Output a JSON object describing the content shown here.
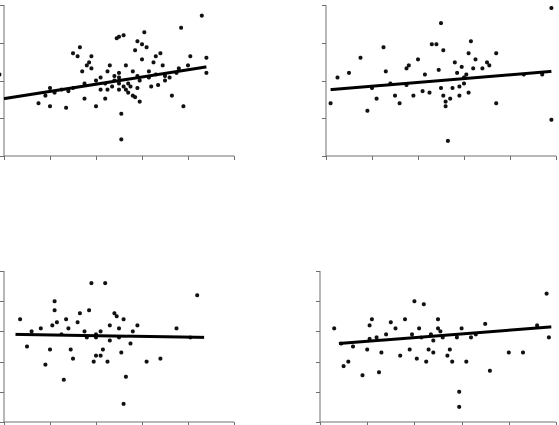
{
  "chart_data": [
    {
      "type": "scatter",
      "xlim": [
        0,
        100
      ],
      "ylim": [
        0,
        100
      ],
      "y_ticks": [
        0,
        25,
        50,
        75,
        100
      ],
      "x_ticks": [
        0,
        20,
        40,
        60,
        80,
        100
      ],
      "trend": [
        [
          0,
          38
        ],
        [
          88,
          59
        ]
      ],
      "points": [
        [
          -2,
          54
        ],
        [
          15,
          35
        ],
        [
          18,
          40
        ],
        [
          20,
          33
        ],
        [
          20,
          45
        ],
        [
          22,
          42
        ],
        [
          25,
          44
        ],
        [
          27,
          32
        ],
        [
          28,
          43
        ],
        [
          30,
          68
        ],
        [
          30,
          45
        ],
        [
          32,
          66
        ],
        [
          33,
          72
        ],
        [
          34,
          56
        ],
        [
          35,
          48
        ],
        [
          35,
          38
        ],
        [
          36,
          60
        ],
        [
          37,
          62
        ],
        [
          38,
          58
        ],
        [
          38,
          66
        ],
        [
          40,
          50
        ],
        [
          40,
          33
        ],
        [
          42,
          52
        ],
        [
          42,
          44
        ],
        [
          44,
          38
        ],
        [
          44,
          48
        ],
        [
          45,
          44
        ],
        [
          45,
          56
        ],
        [
          46,
          60
        ],
        [
          47,
          46
        ],
        [
          48,
          50
        ],
        [
          48,
          53
        ],
        [
          49,
          78
        ],
        [
          50,
          55
        ],
        [
          50,
          79
        ],
        [
          50,
          44
        ],
        [
          50,
          52
        ],
        [
          50,
          48
        ],
        [
          51,
          11
        ],
        [
          51,
          28
        ],
        [
          52,
          80
        ],
        [
          52,
          46
        ],
        [
          53,
          60
        ],
        [
          53,
          44
        ],
        [
          54,
          42
        ],
        [
          54,
          48
        ],
        [
          55,
          46
        ],
        [
          56,
          56
        ],
        [
          56,
          40
        ],
        [
          57,
          39
        ],
        [
          57,
          70
        ],
        [
          58,
          76
        ],
        [
          58,
          45
        ],
        [
          58,
          53
        ],
        [
          59,
          36
        ],
        [
          59,
          50
        ],
        [
          60,
          64
        ],
        [
          60,
          74
        ],
        [
          61,
          82
        ],
        [
          62,
          72
        ],
        [
          63,
          56
        ],
        [
          63,
          52
        ],
        [
          64,
          46
        ],
        [
          65,
          62
        ],
        [
          66,
          66
        ],
        [
          66,
          54
        ],
        [
          67,
          47
        ],
        [
          68,
          68
        ],
        [
          69,
          60
        ],
        [
          70,
          50
        ],
        [
          70,
          53
        ],
        [
          72,
          52
        ],
        [
          73,
          40
        ],
        [
          75,
          55
        ],
        [
          76,
          58
        ],
        [
          77,
          85
        ],
        [
          78,
          33
        ],
        [
          80,
          60
        ],
        [
          81,
          66
        ],
        [
          86,
          93
        ],
        [
          88,
          55
        ],
        [
          88,
          65
        ]
      ]
    },
    {
      "type": "scatter",
      "xlim": [
        0,
        100
      ],
      "ylim": [
        0,
        100
      ],
      "y_ticks": [
        0,
        25,
        50,
        75,
        100
      ],
      "x_ticks": [
        0,
        20,
        40,
        60,
        80,
        100
      ],
      "trend": [
        [
          2,
          44
        ],
        [
          98,
          56
        ]
      ],
      "points": [
        [
          2,
          35
        ],
        [
          5,
          52
        ],
        [
          10,
          55
        ],
        [
          15,
          65
        ],
        [
          18,
          30
        ],
        [
          20,
          45
        ],
        [
          22,
          38
        ],
        [
          25,
          72
        ],
        [
          26,
          56
        ],
        [
          28,
          48
        ],
        [
          30,
          40
        ],
        [
          32,
          35
        ],
        [
          35,
          47
        ],
        [
          35,
          58
        ],
        [
          36,
          60
        ],
        [
          38,
          40
        ],
        [
          40,
          64
        ],
        [
          42,
          43
        ],
        [
          43,
          54
        ],
        [
          45,
          42
        ],
        [
          46,
          74
        ],
        [
          48,
          74
        ],
        [
          49,
          57
        ],
        [
          50,
          88
        ],
        [
          50,
          45
        ],
        [
          51,
          70
        ],
        [
          51,
          40
        ],
        [
          52,
          36
        ],
        [
          52,
          33
        ],
        [
          53,
          10
        ],
        [
          54,
          38
        ],
        [
          55,
          45
        ],
        [
          56,
          62
        ],
        [
          57,
          55
        ],
        [
          58,
          46
        ],
        [
          58,
          40
        ],
        [
          59,
          59
        ],
        [
          60,
          48
        ],
        [
          60,
          52
        ],
        [
          61,
          54
        ],
        [
          62,
          68
        ],
        [
          62,
          42
        ],
        [
          63,
          76
        ],
        [
          64,
          58
        ],
        [
          65,
          64
        ],
        [
          68,
          58
        ],
        [
          70,
          62
        ],
        [
          71,
          60
        ],
        [
          74,
          68
        ],
        [
          74,
          35
        ],
        [
          86,
          54
        ],
        [
          94,
          54
        ],
        [
          98,
          98
        ],
        [
          98,
          24
        ]
      ]
    },
    {
      "type": "scatter",
      "xlim": [
        0,
        100
      ],
      "ylim": [
        0,
        100
      ],
      "y_ticks": [
        0,
        20,
        40,
        60,
        80,
        100
      ],
      "x_ticks": [
        0,
        20,
        40,
        60,
        80,
        100
      ],
      "trend": [
        [
          5,
          58
        ],
        [
          87,
          56
        ]
      ],
      "points": [
        [
          7,
          68
        ],
        [
          10,
          50
        ],
        [
          12,
          60
        ],
        [
          16,
          62
        ],
        [
          18,
          38
        ],
        [
          20,
          48
        ],
        [
          21,
          64
        ],
        [
          22,
          74
        ],
        [
          22,
          80
        ],
        [
          23,
          66
        ],
        [
          25,
          58
        ],
        [
          26,
          28
        ],
        [
          27,
          68
        ],
        [
          28,
          62
        ],
        [
          29,
          48
        ],
        [
          30,
          42
        ],
        [
          32,
          66
        ],
        [
          33,
          72
        ],
        [
          35,
          60
        ],
        [
          36,
          56
        ],
        [
          37,
          74
        ],
        [
          38,
          92
        ],
        [
          39,
          40
        ],
        [
          40,
          58
        ],
        [
          40,
          44
        ],
        [
          40,
          56
        ],
        [
          42,
          60
        ],
        [
          42,
          44
        ],
        [
          43,
          48
        ],
        [
          44,
          92
        ],
        [
          45,
          40
        ],
        [
          46,
          64
        ],
        [
          46,
          54
        ],
        [
          48,
          72
        ],
        [
          49,
          70
        ],
        [
          50,
          62
        ],
        [
          50,
          56
        ],
        [
          51,
          46
        ],
        [
          52,
          68
        ],
        [
          52,
          12
        ],
        [
          53,
          30
        ],
        [
          55,
          52
        ],
        [
          56,
          60
        ],
        [
          58,
          64
        ],
        [
          62,
          40
        ],
        [
          68,
          42
        ],
        [
          75,
          62
        ],
        [
          81,
          56
        ],
        [
          84,
          84
        ]
      ]
    },
    {
      "type": "scatter",
      "xlim": [
        0,
        100
      ],
      "ylim": [
        0,
        100
      ],
      "y_ticks": [
        0,
        20,
        40,
        60,
        80,
        100
      ],
      "x_ticks": [
        0,
        20,
        40,
        60,
        80,
        100
      ],
      "trend": [
        [
          8,
          52
        ],
        [
          98,
          63
        ]
      ],
      "points": [
        [
          6,
          62
        ],
        [
          9,
          52
        ],
        [
          10,
          37
        ],
        [
          12,
          40
        ],
        [
          14,
          50
        ],
        [
          18,
          31
        ],
        [
          20,
          48
        ],
        [
          21,
          55
        ],
        [
          21,
          64
        ],
        [
          22,
          68
        ],
        [
          24,
          56
        ],
        [
          25,
          33
        ],
        [
          26,
          46
        ],
        [
          28,
          58
        ],
        [
          30,
          66
        ],
        [
          32,
          62
        ],
        [
          34,
          44
        ],
        [
          36,
          68
        ],
        [
          38,
          48
        ],
        [
          39,
          58
        ],
        [
          40,
          80
        ],
        [
          41,
          42
        ],
        [
          42,
          62
        ],
        [
          43,
          56
        ],
        [
          44,
          78
        ],
        [
          45,
          40
        ],
        [
          46,
          48
        ],
        [
          47,
          58
        ],
        [
          48,
          46
        ],
        [
          48,
          54
        ],
        [
          50,
          62
        ],
        [
          50,
          68
        ],
        [
          51,
          60
        ],
        [
          52,
          56
        ],
        [
          54,
          44
        ],
        [
          55,
          48
        ],
        [
          56,
          40
        ],
        [
          58,
          56
        ],
        [
          59,
          20
        ],
        [
          59,
          10
        ],
        [
          60,
          62
        ],
        [
          62,
          40
        ],
        [
          64,
          56
        ],
        [
          66,
          58
        ],
        [
          70,
          65
        ],
        [
          72,
          34
        ],
        [
          80,
          46
        ],
        [
          86,
          46
        ],
        [
          92,
          64
        ],
        [
          96,
          85
        ],
        [
          97,
          56
        ]
      ]
    }
  ]
}
